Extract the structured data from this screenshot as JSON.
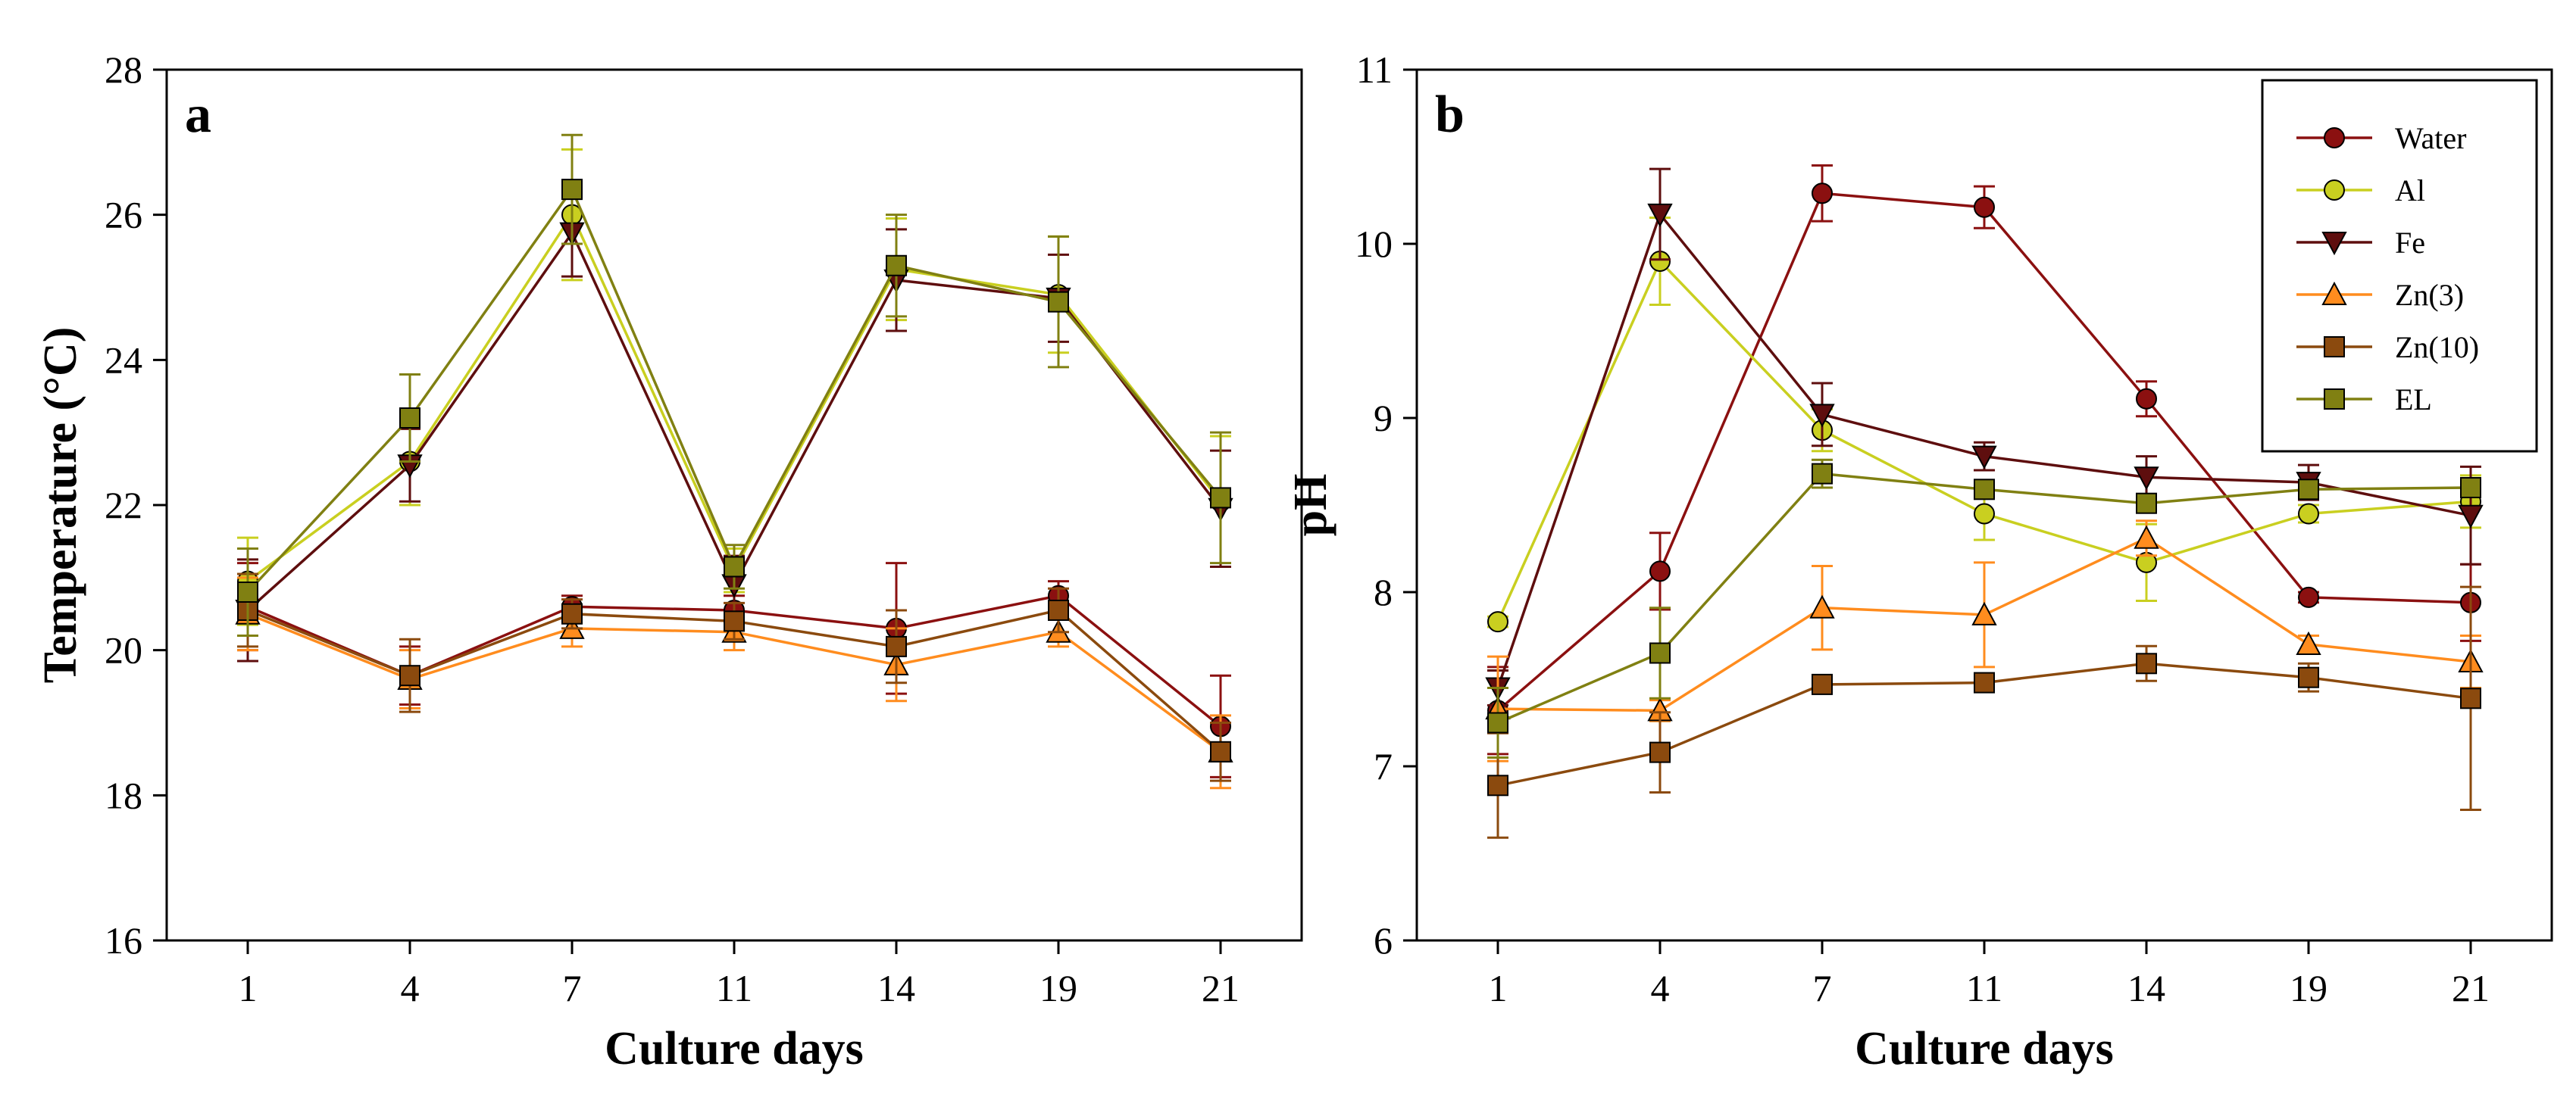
{
  "colors": {
    "Water": "#8B1010",
    "Al": "#C9CF20",
    "Fe": "#5E0E0E",
    "Zn(3)": "#FF8C1E",
    "Zn(10)": "#8B4A0E",
    "EL": "#808012"
  },
  "chart_data": [
    {
      "type": "line",
      "panel_label": "a",
      "xlabel": "Culture days",
      "ylabel": "Temperature (°C)",
      "categories": [
        "1",
        "4",
        "7",
        "11",
        "14",
        "19",
        "21"
      ],
      "ylim": [
        16,
        28
      ],
      "yticks": [
        "16",
        "18",
        "20",
        "22",
        "24",
        "26",
        "28"
      ],
      "legend": false,
      "series": [
        {
          "name": "Water",
          "marker": "circle",
          "values": [
            20.6,
            19.65,
            20.6,
            20.55,
            20.3,
            20.75,
            18.95
          ],
          "errors": [
            0.6,
            0.4,
            0.15,
            0.2,
            0.9,
            0.2,
            0.7
          ]
        },
        {
          "name": "Al",
          "marker": "circle",
          "values": [
            20.95,
            22.6,
            26.0,
            21.1,
            25.25,
            24.9,
            22.05
          ],
          "errors": [
            0.6,
            0.6,
            0.9,
            0.3,
            0.7,
            0.8,
            0.9
          ]
        },
        {
          "name": "Fe",
          "marker": "triangle-down",
          "values": [
            20.55,
            22.55,
            25.75,
            20.9,
            25.1,
            24.85,
            21.95
          ],
          "errors": [
            0.7,
            0.5,
            0.6,
            0.4,
            0.7,
            0.6,
            0.8
          ]
        },
        {
          "name": "Zn(3)",
          "marker": "triangle-up",
          "values": [
            20.5,
            19.6,
            20.3,
            20.25,
            19.8,
            20.25,
            18.6
          ],
          "errors": [
            0.5,
            0.4,
            0.25,
            0.25,
            0.5,
            0.2,
            0.5
          ]
        },
        {
          "name": "Zn(10)",
          "marker": "square",
          "values": [
            20.55,
            19.65,
            20.5,
            20.4,
            20.05,
            20.55,
            18.6
          ],
          "errors": [
            0.5,
            0.5,
            0.2,
            0.25,
            0.5,
            0.3,
            0.4
          ]
        },
        {
          "name": "EL",
          "marker": "square",
          "values": [
            20.8,
            23.2,
            26.35,
            21.15,
            25.3,
            24.8,
            22.1
          ],
          "errors": [
            0.6,
            0.6,
            0.75,
            0.3,
            0.7,
            0.9,
            0.9
          ]
        }
      ]
    },
    {
      "type": "line",
      "panel_label": "b",
      "xlabel": "Culture days",
      "ylabel": "pH",
      "categories": [
        "1",
        "4",
        "7",
        "11",
        "14",
        "19",
        "21"
      ],
      "ylim": [
        6,
        11
      ],
      "yticks": [
        "6",
        "7",
        "8",
        "9",
        "10",
        "11"
      ],
      "legend": true,
      "legend_position": "top-right",
      "series": [
        {
          "name": "Water",
          "marker": "circle",
          "values": [
            7.32,
            8.12,
            10.29,
            10.21,
            9.11,
            7.97,
            7.94
          ],
          "errors": [
            0.25,
            0.22,
            0.16,
            0.12,
            0.1,
            0.03,
            0.22
          ]
        },
        {
          "name": "Al",
          "marker": "circle",
          "values": [
            7.83,
            9.9,
            8.93,
            8.45,
            8.17,
            8.45,
            8.52
          ],
          "errors": [
            0.03,
            0.25,
            0.12,
            0.15,
            0.22,
            0.05,
            0.15
          ]
        },
        {
          "name": "Fe",
          "marker": "triangle-down",
          "values": [
            7.45,
            10.17,
            9.02,
            8.78,
            8.66,
            8.63,
            8.44
          ],
          "errors": [
            0.1,
            0.26,
            0.18,
            0.08,
            0.12,
            0.1,
            0.28
          ]
        },
        {
          "name": "Zn(3)",
          "marker": "triangle-up",
          "values": [
            7.33,
            7.32,
            7.91,
            7.87,
            8.31,
            7.7,
            7.6
          ],
          "errors": [
            0.3,
            0.06,
            0.24,
            0.3,
            0.1,
            0.05,
            0.15
          ]
        },
        {
          "name": "Zn(10)",
          "marker": "square",
          "values": [
            6.89,
            7.08,
            7.47,
            7.48,
            7.59,
            7.51,
            7.39
          ],
          "errors": [
            0.3,
            0.23,
            0.05,
            0.05,
            0.1,
            0.08,
            0.64
          ]
        },
        {
          "name": "EL",
          "marker": "square",
          "values": [
            7.25,
            7.65,
            8.68,
            8.59,
            8.51,
            8.59,
            8.6
          ],
          "errors": [
            0.2,
            0.26,
            0.08,
            0.05,
            0.05,
            0.05,
            0.05
          ]
        }
      ]
    }
  ]
}
